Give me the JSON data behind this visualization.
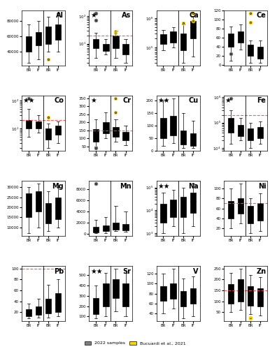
{
  "elements": [
    "Al",
    "As",
    "Ca",
    "Ce",
    "Co",
    "Cr",
    "Cu",
    "Fe",
    "Mg",
    "Mn",
    "Na",
    "Ni",
    "Pb",
    "Sr",
    "V",
    "Zn"
  ],
  "stars": {
    "Al": 0,
    "As": 1,
    "Ca": 0,
    "Ce": 0,
    "Co": 2,
    "Cr": 1,
    "Cu": 2,
    "Fe": 1,
    "Mg": 0,
    "Mn": 0,
    "Na": 2,
    "Ni": 0,
    "Pb": 0,
    "Sr": 2,
    "V": 0,
    "Zn": 0
  },
  "log_scale": {
    "Al": false,
    "As": true,
    "Ca": true,
    "Ce": false,
    "Co": true,
    "Cr": false,
    "Cu": false,
    "Fe": true,
    "Mg": false,
    "Mn": false,
    "Na": true,
    "Ni": false,
    "Pb": false,
    "Sr": false,
    "V": false,
    "Zn": false
  },
  "dashed_line": {
    "Al": null,
    "As": 20,
    "Ca": null,
    "Ce": null,
    "Co": 20,
    "Cr": 150,
    "Cu": null,
    "Fe": 200000,
    "Mg": null,
    "Mn": null,
    "Na": null,
    "Ni": 70,
    "Pb": 100,
    "Sr": null,
    "V": null,
    "Zn": 150
  },
  "gray_boxes": {
    "Al": [
      {
        "whislo": 25000,
        "q1": 40000,
        "med": 52000,
        "q3": 60000,
        "whishi": 75000,
        "fliers": []
      },
      {
        "whislo": 30000,
        "q1": 48000,
        "med": 55000,
        "q3": 65000,
        "whishi": 80000,
        "fliers": []
      }
    ],
    "As": [
      {
        "whislo": 3,
        "q1": 7,
        "med": 10,
        "q3": 15,
        "whishi": 25,
        "fliers": [
          130,
          70
        ]
      },
      {
        "whislo": 4,
        "q1": 5.5,
        "med": 7,
        "q3": 10,
        "whishi": 15,
        "fliers": []
      }
    ],
    "Ca": [
      {
        "whislo": 80000,
        "q1": 130000,
        "med": 200000,
        "q3": 280000,
        "whishi": 400000,
        "fliers": []
      },
      {
        "whislo": 100000,
        "q1": 150000,
        "med": 250000,
        "q3": 350000,
        "whishi": 500000,
        "fliers": []
      }
    ],
    "Ce": [
      {
        "whislo": 10,
        "q1": 40,
        "med": 55,
        "q3": 70,
        "whishi": 85,
        "fliers": [
          25
        ]
      },
      {
        "whislo": 35,
        "q1": 50,
        "med": 60,
        "q3": 75,
        "whishi": 90,
        "fliers": []
      }
    ],
    "Co": [
      {
        "whislo": 5,
        "q1": 10,
        "med": 13,
        "q3": 20,
        "whishi": 50,
        "fliers": [
          120
        ]
      },
      {
        "whislo": 7,
        "q1": 10,
        "med": 13,
        "q3": 18,
        "whishi": 30,
        "fliers": []
      }
    ],
    "Cr": [
      {
        "whislo": 50,
        "q1": 80,
        "med": 120,
        "q3": 160,
        "whishi": 220,
        "fliers": [
          40
        ]
      },
      {
        "whislo": 100,
        "q1": 130,
        "med": 160,
        "q3": 200,
        "whishi": 260,
        "fliers": []
      }
    ],
    "Cu": [
      {
        "whislo": 20,
        "q1": 50,
        "med": 80,
        "q3": 130,
        "whishi": 200,
        "fliers": []
      },
      {
        "whislo": 30,
        "q1": 60,
        "med": 90,
        "q3": 140,
        "whishi": 210,
        "fliers": []
      }
    ],
    "Fe": [
      {
        "whislo": 15000,
        "q1": 40000,
        "med": 80000,
        "q3": 150000,
        "whishi": 300000,
        "fliers": [
          900000
        ]
      },
      {
        "whislo": 20000,
        "q1": 30000,
        "med": 50000,
        "q3": 80000,
        "whishi": 150000,
        "fliers": []
      }
    ],
    "Mg": [
      {
        "whislo": 7000,
        "q1": 15000,
        "med": 22000,
        "q3": 27000,
        "whishi": 30000,
        "fliers": []
      },
      {
        "whislo": 10000,
        "q1": 18000,
        "med": 24000,
        "q3": 28000,
        "whishi": 32000,
        "fliers": []
      }
    ],
    "Mn": [
      {
        "whislo": 100,
        "q1": 300,
        "med": 600,
        "q3": 1200,
        "whishi": 2500,
        "fliers": [
          9000
        ]
      },
      {
        "whislo": 200,
        "q1": 500,
        "med": 800,
        "q3": 1500,
        "whishi": 3000,
        "fliers": []
      }
    ],
    "Na": [
      {
        "whislo": 1000,
        "q1": 3000,
        "med": 8000,
        "q3": 20000,
        "whishi": 60000,
        "fliers": []
      },
      {
        "whislo": 2000,
        "q1": 5000,
        "med": 12000,
        "q3": 30000,
        "whishi": 80000,
        "fliers": []
      }
    ],
    "Ni": [
      {
        "whislo": 20,
        "q1": 40,
        "med": 55,
        "q3": 75,
        "whishi": 100,
        "fliers": []
      },
      {
        "whislo": 30,
        "q1": 50,
        "med": 65,
        "q3": 80,
        "whishi": 110,
        "fliers": []
      }
    ],
    "Pb": [
      {
        "whislo": 8,
        "q1": 12,
        "med": 18,
        "q3": 25,
        "whishi": 35,
        "fliers": []
      },
      {
        "whislo": 10,
        "q1": 15,
        "med": 20,
        "q3": 30,
        "whishi": 45,
        "fliers": []
      }
    ],
    "Sr": [
      {
        "whislo": 80,
        "q1": 120,
        "med": 180,
        "q3": 280,
        "whishi": 400,
        "fliers": []
      },
      {
        "whislo": 100,
        "q1": 200,
        "med": 320,
        "q3": 420,
        "whishi": 520,
        "fliers": []
      }
    ],
    "V": [
      {
        "whislo": 40,
        "q1": 65,
        "med": 80,
        "q3": 95,
        "whishi": 120,
        "fliers": []
      },
      {
        "whislo": 50,
        "q1": 70,
        "med": 85,
        "q3": 100,
        "whishi": 130,
        "fliers": []
      }
    ],
    "Zn": [
      {
        "whislo": 50,
        "q1": 90,
        "med": 130,
        "q3": 180,
        "whishi": 230,
        "fliers": []
      },
      {
        "whislo": 60,
        "q1": 100,
        "med": 150,
        "q3": 200,
        "whishi": 250,
        "fliers": []
      }
    ]
  },
  "yellow_boxes": {
    "Al": [
      {
        "whislo": 40000,
        "q1": 50000,
        "med": 62000,
        "q3": 72000,
        "whishi": 85000,
        "fliers": [
          30000
        ]
      },
      {
        "whislo": 40000,
        "q1": 55000,
        "med": 65000,
        "q3": 75000,
        "whishi": 90000,
        "fliers": []
      }
    ],
    "As": [
      {
        "whislo": 3,
        "q1": 7,
        "med": 12,
        "q3": 20,
        "whishi": 30,
        "fliers": [
          25,
          28
        ]
      },
      {
        "whislo": 2,
        "q1": 4,
        "med": 6,
        "q3": 10,
        "whishi": 15,
        "fliers": []
      }
    ],
    "Ca": [
      {
        "whislo": 30000,
        "q1": 80000,
        "med": 150000,
        "q3": 300000,
        "whishi": 600000,
        "fliers": [
          700000
        ]
      },
      {
        "whislo": 50000,
        "q1": 200000,
        "med": 500000,
        "q3": 800000,
        "whishi": 1200000,
        "fliers": [
          1500000,
          800000
        ]
      }
    ],
    "Ce": [
      {
        "whislo": 5,
        "q1": 20,
        "med": 35,
        "q3": 45,
        "whishi": 55,
        "fliers": [
          115,
          95
        ]
      },
      {
        "whislo": 5,
        "q1": 15,
        "med": 25,
        "q3": 40,
        "whishi": 55,
        "fliers": []
      }
    ],
    "Co": [
      {
        "whislo": 2,
        "q1": 4,
        "med": 7,
        "q3": 10,
        "whishi": 15,
        "fliers": [
          25
        ]
      },
      {
        "whislo": 3,
        "q1": 6,
        "med": 9,
        "q3": 13,
        "whishi": 18,
        "fliers": []
      }
    ],
    "Cr": [
      {
        "whislo": 80,
        "q1": 110,
        "med": 140,
        "q3": 170,
        "whishi": 220,
        "fliers": [
          350,
          260
        ]
      },
      {
        "whislo": 60,
        "q1": 90,
        "med": 110,
        "q3": 140,
        "whishi": 180,
        "fliers": []
      }
    ],
    "Cu": [
      {
        "whislo": 10,
        "q1": 25,
        "med": 45,
        "q3": 80,
        "whishi": 150,
        "fliers": []
      },
      {
        "whislo": 10,
        "q1": 20,
        "med": 40,
        "q3": 70,
        "whishi": 120,
        "fliers": []
      }
    ],
    "Fe": [
      {
        "whislo": 10000,
        "q1": 20000,
        "med": 35000,
        "q3": 60000,
        "whishi": 100000,
        "fliers": []
      },
      {
        "whislo": 15000,
        "q1": 25000,
        "med": 40000,
        "q3": 65000,
        "whishi": 110000,
        "fliers": []
      }
    ],
    "Mg": [
      {
        "whislo": 8000,
        "q1": 12000,
        "med": 18000,
        "q3": 22000,
        "whishi": 28000,
        "fliers": []
      },
      {
        "whislo": 10000,
        "q1": 14000,
        "med": 20000,
        "q3": 25000,
        "whishi": 30000,
        "fliers": []
      }
    ],
    "Mn": [
      {
        "whislo": 500,
        "q1": 800,
        "med": 1200,
        "q3": 2000,
        "whishi": 5000,
        "fliers": []
      },
      {
        "whislo": 400,
        "q1": 700,
        "med": 1000,
        "q3": 1800,
        "whishi": 4000,
        "fliers": []
      }
    ],
    "Na": [
      {
        "whislo": 1000,
        "q1": 5000,
        "med": 15000,
        "q3": 40000,
        "whishi": 100000,
        "fliers": []
      },
      {
        "whislo": 2000,
        "q1": 8000,
        "med": 25000,
        "q3": 60000,
        "whishi": 150000,
        "fliers": []
      }
    ],
    "Ni": [
      {
        "whislo": 10,
        "q1": 30,
        "med": 50,
        "q3": 65,
        "whishi": 80,
        "fliers": []
      },
      {
        "whislo": 15,
        "q1": 35,
        "med": 55,
        "q3": 70,
        "whishi": 90,
        "fliers": []
      }
    ],
    "Pb": [
      {
        "whislo": 10,
        "q1": 18,
        "med": 28,
        "q3": 45,
        "whishi": 70,
        "fliers": []
      },
      {
        "whislo": 12,
        "q1": 20,
        "med": 35,
        "q3": 55,
        "whishi": 80,
        "fliers": []
      }
    ],
    "Sr": [
      {
        "whislo": 150,
        "q1": 280,
        "med": 380,
        "q3": 460,
        "whishi": 560,
        "fliers": []
      },
      {
        "whislo": 100,
        "q1": 200,
        "med": 320,
        "q3": 420,
        "whishi": 520,
        "fliers": []
      }
    ],
    "V": [
      {
        "whislo": 30,
        "q1": 55,
        "med": 70,
        "q3": 85,
        "whishi": 110,
        "fliers": []
      },
      {
        "whislo": 35,
        "q1": 60,
        "med": 75,
        "q3": 90,
        "whishi": 115,
        "fliers": []
      }
    ],
    "Zn": [
      {
        "whislo": 40,
        "q1": 80,
        "med": 120,
        "q3": 170,
        "whishi": 220,
        "fliers": [
          20,
          25
        ]
      },
      {
        "whislo": 35,
        "q1": 75,
        "med": 110,
        "q3": 160,
        "whishi": 210,
        "fliers": []
      }
    ]
  },
  "x_labels": [
    "BR",
    "IF",
    "BR",
    "IF"
  ],
  "gray_color": "#808080",
  "yellow_color": "#FFD700",
  "dashed_color": "#FF4444",
  "legend_gray": "2022 samples",
  "legend_yellow": "Bucuardi et al., 2021"
}
